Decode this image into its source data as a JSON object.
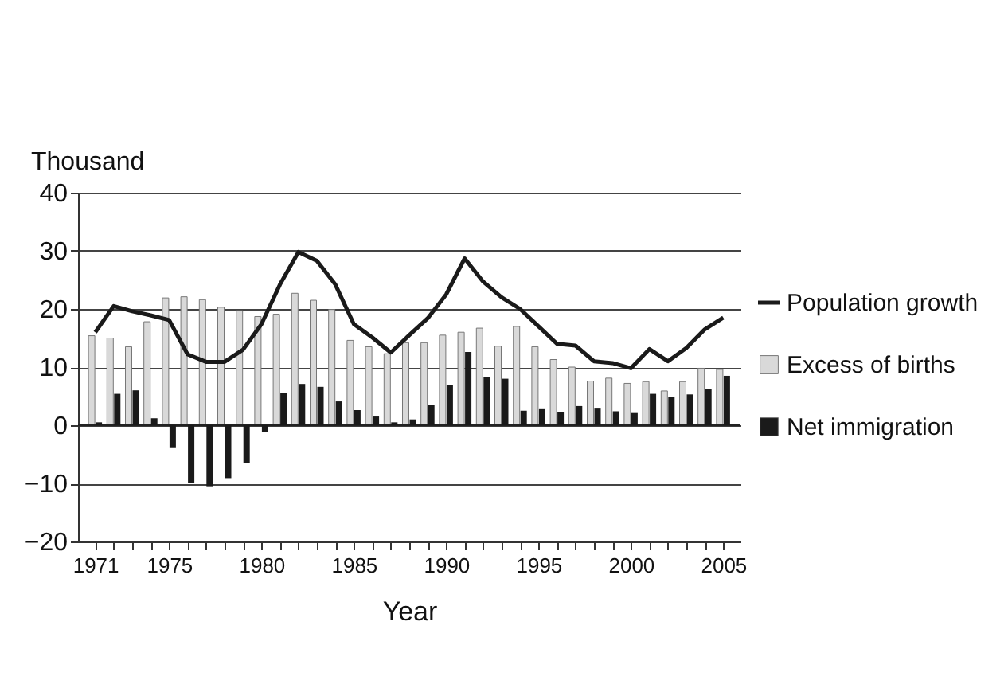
{
  "chart_data": {
    "type": "bar",
    "ylabel": "Thousand",
    "xlabel": "Year",
    "x": [
      1971,
      1972,
      1973,
      1974,
      1975,
      1976,
      1977,
      1978,
      1979,
      1980,
      1981,
      1982,
      1983,
      1984,
      1985,
      1986,
      1987,
      1988,
      1989,
      1990,
      1991,
      1992,
      1993,
      1994,
      1995,
      1996,
      1997,
      1998,
      1999,
      2000,
      2001,
      2002,
      2003,
      2004,
      2005
    ],
    "series": [
      {
        "name": "Population growth",
        "type": "line",
        "color": "#1a1a1a",
        "values": [
          16,
          20.5,
          19.6,
          18.9,
          18.1,
          12.2,
          10.9,
          10.9,
          13,
          17.4,
          24.2,
          29.8,
          28.3,
          24.2,
          17.4,
          15.1,
          12.5,
          15.5,
          18.4,
          22.5,
          28.7,
          24.7,
          22,
          20,
          17,
          14,
          13.7,
          11,
          10.7,
          9.8,
          13.1,
          11,
          13.3,
          16.5,
          18.5
        ]
      },
      {
        "name": "Excess of births",
        "color": "#d9d9d9",
        "values": [
          15.4,
          15,
          13.5,
          17.8,
          21.9,
          22.1,
          21.6,
          20.3,
          19.7,
          18.7,
          19.1,
          22.7,
          21.5,
          19.9,
          14.6,
          13.5,
          12.3,
          14.2,
          14.2,
          15.5,
          16,
          16.7,
          13.6,
          17,
          13.5,
          11.3,
          10,
          7.6,
          8.1,
          7.2,
          7.5,
          5.9,
          7.5,
          9.8,
          9.6
        ]
      },
      {
        "name": "Net immigration",
        "color": "#1a1a1a",
        "values": [
          0.5,
          5.4,
          6,
          1.2,
          -3.8,
          -9.9,
          -10.5,
          -9.1,
          -6.5,
          -1.1,
          5.6,
          7.1,
          6.6,
          4.1,
          2.6,
          1.5,
          0.5,
          1,
          3.5,
          6.9,
          12.6,
          8.3,
          8,
          2.5,
          2.9,
          2.3,
          3.3,
          3,
          2.4,
          2.1,
          5.4,
          4.8,
          5.3,
          6.3,
          8.5
        ]
      }
    ],
    "xlim": [
      1970.5,
      2005.5
    ],
    "xticks": [
      1971,
      {
        "value": 1972,
        "label": null
      },
      {
        "value": 1973,
        "label": null
      },
      {
        "value": 1974,
        "label": null
      },
      1975,
      {
        "value": 1976,
        "label": null
      },
      {
        "value": 1977,
        "label": null
      },
      {
        "value": 1978,
        "label": null
      },
      {
        "value": 1979,
        "label": null
      },
      1980,
      {
        "value": 1981,
        "label": null
      },
      {
        "value": 1982,
        "label": null
      },
      {
        "value": 1983,
        "label": null
      },
      {
        "value": 1984,
        "label": null
      },
      1985,
      {
        "value": 1986,
        "label": null
      },
      {
        "value": 1987,
        "label": null
      },
      {
        "value": 1988,
        "label": null
      },
      {
        "value": 1989,
        "label": null
      },
      1990,
      {
        "value": 1991,
        "label": null
      },
      {
        "value": 1992,
        "label": null
      },
      {
        "value": 1993,
        "label": null
      },
      {
        "value": 1994,
        "label": null
      },
      1995,
      {
        "value": 1996,
        "label": null
      },
      {
        "value": 1997,
        "label": null
      },
      {
        "value": 1998,
        "label": null
      },
      {
        "value": 1999,
        "label": null
      },
      2000,
      {
        "value": 2001,
        "label": null
      },
      {
        "value": 2002,
        "label": null
      },
      {
        "value": 2003,
        "label": null
      },
      {
        "value": 2004,
        "label": null
      },
      2005
    ],
    "ylim": [
      -20,
      40
    ],
    "yticks": [
      -20,
      -10,
      0,
      10,
      20,
      30,
      40
    ],
    "grid": "y",
    "legend": "right"
  }
}
